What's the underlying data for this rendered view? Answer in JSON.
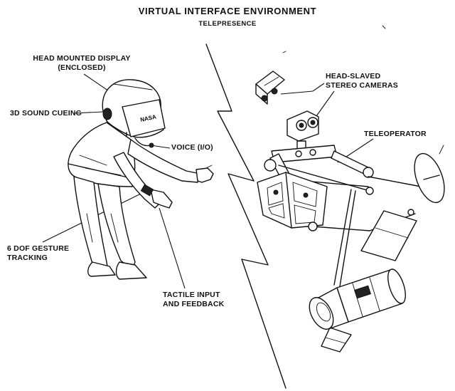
{
  "title": "VIRTUAL INTERFACE ENVIRONMENT",
  "subtitle": "TELEPRESENCE",
  "labels": {
    "hmd_line1": "HEAD MOUNTED DISPLAY",
    "hmd_line2": "(ENCLOSED)",
    "sound": "3D SOUND CUEING",
    "voice": "VOICE (I/O)",
    "gesture_line1": "6 DOF GESTURE",
    "gesture_line2": "TRACKING",
    "tactile_line1": "TACTILE INPUT",
    "tactile_line2": "AND FEEDBACK",
    "cameras_line1": "HEAD-SLAVED",
    "cameras_line2": "STEREO CAMERAS",
    "teleoperator": "TELEOPERATOR",
    "helmet_text": "NASA"
  },
  "colors": {
    "ink": "#111111",
    "background": "#ffffff"
  }
}
